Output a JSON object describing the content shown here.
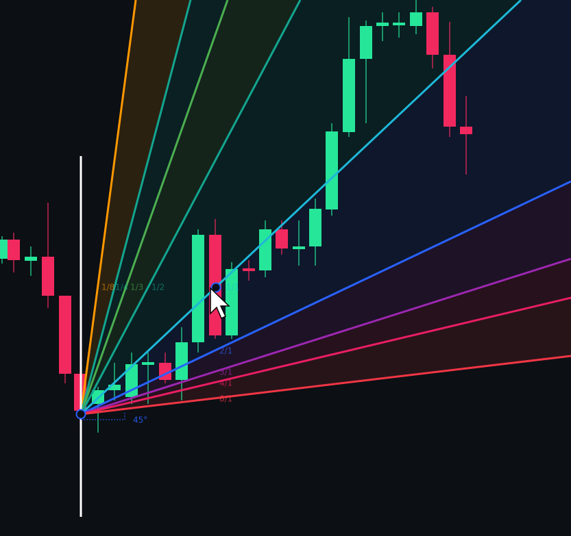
{
  "fan_levels": [
    "1/8",
    "1/4",
    "1/3",
    "1/2",
    "1/1",
    "2/1",
    "3/1",
    "4/1",
    "8/1"
  ],
  "angle_label": "45°"
}
